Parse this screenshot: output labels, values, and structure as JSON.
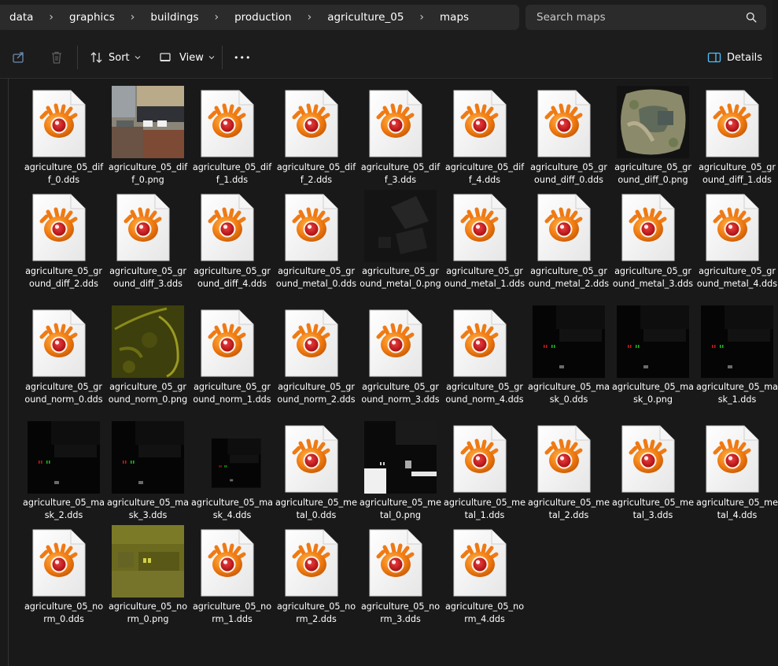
{
  "breadcrumb": [
    "data",
    "graphics",
    "buildings",
    "production",
    "agriculture_05",
    "maps"
  ],
  "search": {
    "placeholder": "Search maps"
  },
  "toolbar": {
    "sort_label": "Sort",
    "view_label": "View",
    "more_label": "•••",
    "details_label": "Details"
  },
  "files": [
    {
      "name": "agriculture_05_diff_0.dds",
      "type": "dds"
    },
    {
      "name": "agriculture_05_diff_0.png",
      "type": "png",
      "thumb": "diff"
    },
    {
      "name": "agriculture_05_diff_1.dds",
      "type": "dds"
    },
    {
      "name": "agriculture_05_diff_2.dds",
      "type": "dds"
    },
    {
      "name": "agriculture_05_diff_3.dds",
      "type": "dds"
    },
    {
      "name": "agriculture_05_diff_4.dds",
      "type": "dds"
    },
    {
      "name": "agriculture_05_ground_diff_0.dds",
      "type": "dds"
    },
    {
      "name": "agriculture_05_ground_diff_0.png",
      "type": "png",
      "thumb": "ground_diff"
    },
    {
      "name": "agriculture_05_ground_diff_1.dds",
      "type": "dds"
    },
    {
      "name": "agriculture_05_ground_diff_2.dds",
      "type": "dds"
    },
    {
      "name": "agriculture_05_ground_diff_3.dds",
      "type": "dds"
    },
    {
      "name": "agriculture_05_ground_diff_4.dds",
      "type": "dds"
    },
    {
      "name": "agriculture_05_ground_metal_0.dds",
      "type": "dds"
    },
    {
      "name": "agriculture_05_ground_metal_0.png",
      "type": "png",
      "thumb": "ground_metal"
    },
    {
      "name": "agriculture_05_ground_metal_1.dds",
      "type": "dds"
    },
    {
      "name": "agriculture_05_ground_metal_2.dds",
      "type": "dds"
    },
    {
      "name": "agriculture_05_ground_metal_3.dds",
      "type": "dds"
    },
    {
      "name": "agriculture_05_ground_metal_4.dds",
      "type": "dds"
    },
    {
      "name": "agriculture_05_ground_norm_0.dds",
      "type": "dds"
    },
    {
      "name": "agriculture_05_ground_norm_0.png",
      "type": "png",
      "thumb": "ground_norm"
    },
    {
      "name": "agriculture_05_ground_norm_1.dds",
      "type": "dds"
    },
    {
      "name": "agriculture_05_ground_norm_2.dds",
      "type": "dds"
    },
    {
      "name": "agriculture_05_ground_norm_3.dds",
      "type": "dds"
    },
    {
      "name": "agriculture_05_ground_norm_4.dds",
      "type": "dds"
    },
    {
      "name": "agriculture_05_mask_0.dds",
      "type": "thumb",
      "thumb": "mask"
    },
    {
      "name": "agriculture_05_mask_0.png",
      "type": "png",
      "thumb": "mask"
    },
    {
      "name": "agriculture_05_mask_1.dds",
      "type": "thumb",
      "thumb": "mask"
    },
    {
      "name": "agriculture_05_mask_2.dds",
      "type": "thumb",
      "thumb": "mask"
    },
    {
      "name": "agriculture_05_mask_3.dds",
      "type": "thumb",
      "thumb": "mask"
    },
    {
      "name": "agriculture_05_mask_4.dds",
      "type": "thumb",
      "thumb": "mask_small"
    },
    {
      "name": "agriculture_05_metal_0.dds",
      "type": "dds"
    },
    {
      "name": "agriculture_05_metal_0.png",
      "type": "png",
      "thumb": "metal"
    },
    {
      "name": "agriculture_05_metal_1.dds",
      "type": "dds"
    },
    {
      "name": "agriculture_05_metal_2.dds",
      "type": "dds"
    },
    {
      "name": "agriculture_05_metal_3.dds",
      "type": "dds"
    },
    {
      "name": "agriculture_05_metal_4.dds",
      "type": "dds"
    },
    {
      "name": "agriculture_05_norm_0.dds",
      "type": "dds"
    },
    {
      "name": "agriculture_05_norm_0.png",
      "type": "png",
      "thumb": "norm"
    },
    {
      "name": "agriculture_05_norm_1.dds",
      "type": "dds"
    },
    {
      "name": "agriculture_05_norm_2.dds",
      "type": "dds"
    },
    {
      "name": "agriculture_05_norm_3.dds",
      "type": "dds"
    },
    {
      "name": "agriculture_05_norm_4.dds",
      "type": "dds"
    }
  ],
  "colors": {
    "accent": "#4cc2ff",
    "background": "#191919",
    "surface": "#2b2b2b",
    "icon_orange": "#ef7a14",
    "icon_red": "#c8161e"
  }
}
